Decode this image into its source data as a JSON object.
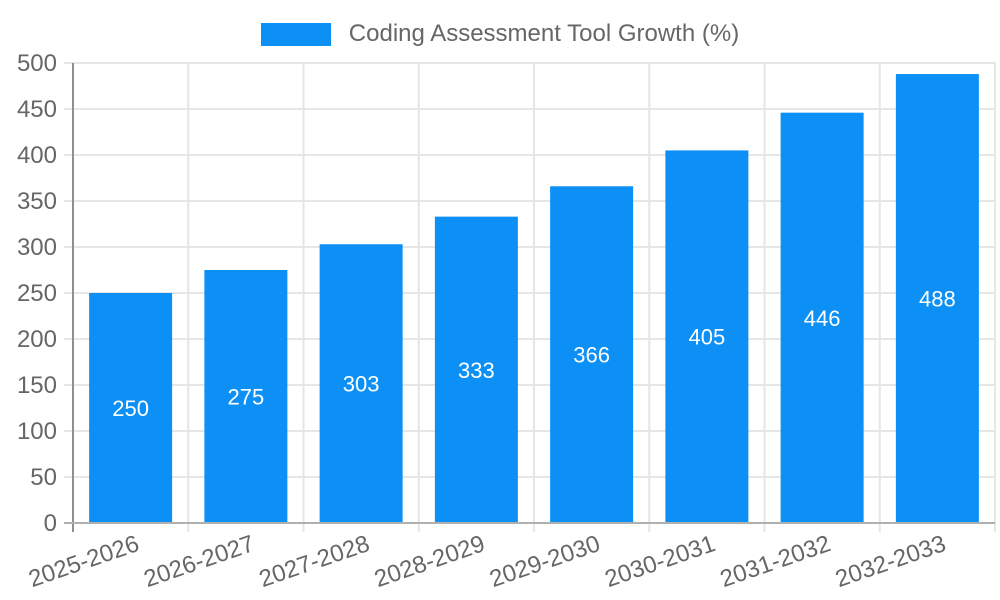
{
  "colors": {
    "bar": "#0D90F5",
    "grid": "#e6e6e6",
    "axis_line_v": "#8f8f8f",
    "axis_line_h": "#b0b0b0",
    "axis_text": "#666666",
    "value_label": "#ffffff"
  },
  "chart_data": {
    "type": "bar",
    "title": "Coding Assessment Tool Growth (%)",
    "categories": [
      "2025-2026",
      "2026-2027",
      "2027-2028",
      "2028-2029",
      "2029-2030",
      "2030-2031",
      "2031-2032",
      "2032-2033"
    ],
    "values": [
      250,
      275,
      303,
      333,
      366,
      405,
      446,
      488
    ],
    "xlabel": "",
    "ylabel": "",
    "ylim": [
      0,
      500
    ],
    "ytick_step": 50,
    "ytick_labels": [
      "0",
      "50",
      "100",
      "150",
      "200",
      "250",
      "300",
      "350",
      "400",
      "450",
      "500"
    ],
    "grid": true,
    "legend_position": "top-center",
    "value_label_placement": "center-inside",
    "x_label_rotation_deg": -19
  }
}
